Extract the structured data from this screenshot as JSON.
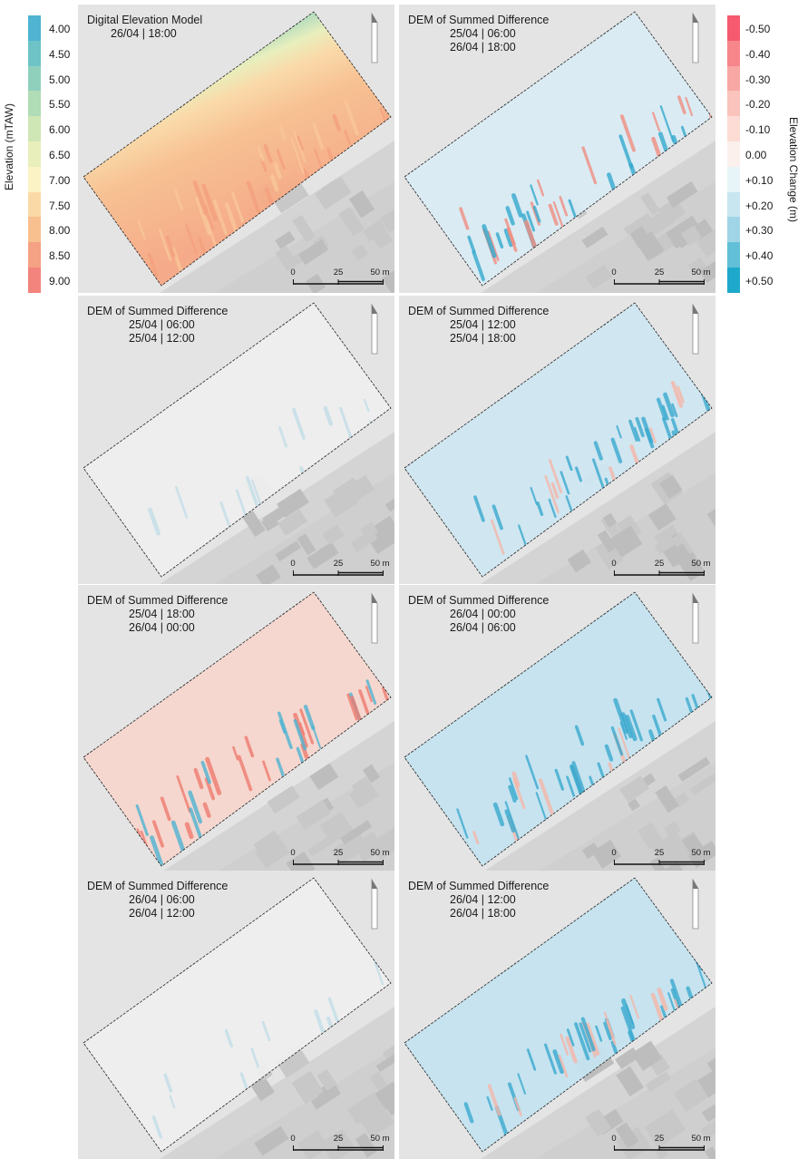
{
  "scalebar": {
    "labels": [
      "0",
      "25",
      "50 m"
    ]
  },
  "panels": [
    {
      "kind": "dem",
      "title": "Digital Elevation Model",
      "dates": [
        "26/04 | 18:00"
      ]
    },
    {
      "kind": "diff",
      "title": "DEM of Summed Difference",
      "dates": [
        "25/04 | 06:00",
        "26/04 | 18:00"
      ],
      "tone": "mixed-strong"
    },
    {
      "kind": "diff",
      "title": "DEM of Summed Difference",
      "dates": [
        "25/04 | 06:00",
        "25/04 | 12:00"
      ],
      "tone": "faint"
    },
    {
      "kind": "diff",
      "title": "DEM of Summed Difference",
      "dates": [
        "25/04 | 12:00",
        "25/04 | 18:00"
      ],
      "tone": "blue-light"
    },
    {
      "kind": "diff",
      "title": "DEM of Summed Difference",
      "dates": [
        "25/04 | 18:00",
        "26/04 | 00:00"
      ],
      "tone": "red"
    },
    {
      "kind": "diff",
      "title": "DEM of Summed Difference",
      "dates": [
        "26/04 | 00:00",
        "26/04 | 06:00"
      ],
      "tone": "blue"
    },
    {
      "kind": "diff",
      "title": "DEM of Summed Difference",
      "dates": [
        "26/04 | 06:00",
        "26/04 | 12:00"
      ],
      "tone": "faint"
    },
    {
      "kind": "diff",
      "title": "DEM of Summed Difference",
      "dates": [
        "26/04 | 12:00",
        "26/04 | 18:00"
      ],
      "tone": "blue"
    }
  ],
  "elevation_legend": {
    "title": "Elevation (mTAW)",
    "items": [
      {
        "label": "4.00",
        "color": "#4fb3d1"
      },
      {
        "label": "4.50",
        "color": "#6ec3c6"
      },
      {
        "label": "5.00",
        "color": "#8fd0bd"
      },
      {
        "label": "5.50",
        "color": "#b0dcb6"
      },
      {
        "label": "6.00",
        "color": "#cfe6b5"
      },
      {
        "label": "6.50",
        "color": "#e9efbb"
      },
      {
        "label": "7.00",
        "color": "#fbf3c6"
      },
      {
        "label": "7.50",
        "color": "#fbd9a6"
      },
      {
        "label": "8.00",
        "color": "#f8bf8f"
      },
      {
        "label": "8.50",
        "color": "#f5a184"
      },
      {
        "label": "9.00",
        "color": "#f2847d"
      }
    ]
  },
  "change_legend": {
    "title": "Elevation Change (m)",
    "items": [
      {
        "label": "-0.50",
        "color": "#f55a6e"
      },
      {
        "label": "-0.40",
        "color": "#f7868b"
      },
      {
        "label": "-0.30",
        "color": "#f8a7a4"
      },
      {
        "label": "-0.20",
        "color": "#fac3bc"
      },
      {
        "label": "-0.10",
        "color": "#fcdcd4"
      },
      {
        "label": "0.00",
        "color": "#fbf0ec"
      },
      {
        "label": "+0.10",
        "color": "#e7f4f8"
      },
      {
        "label": "+0.20",
        "color": "#c7e6f0"
      },
      {
        "label": "+0.30",
        "color": "#9fd5e6"
      },
      {
        "label": "+0.40",
        "color": "#62bfd8"
      },
      {
        "label": "+0.50",
        "color": "#1ea9cc"
      }
    ]
  }
}
